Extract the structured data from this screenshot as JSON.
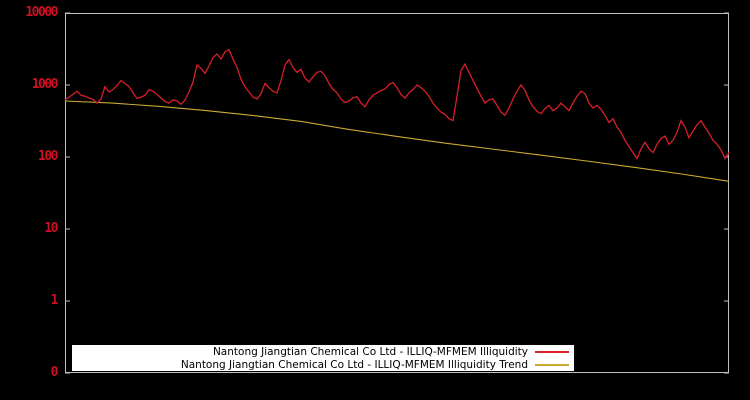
{
  "chart": {
    "background_color": "#000000",
    "frame_color": "#c0c0c0",
    "y_axis": {
      "scale": "log",
      "tick_labels": [
        "10000",
        "1000",
        "100",
        "10",
        "1",
        "0"
      ],
      "tick_values": [
        10000,
        1000,
        100,
        10,
        1,
        0.1
      ],
      "label_color": "#cc1122"
    },
    "x_axis": {
      "tick_labels": []
    },
    "legend": {
      "background": "#ffffff",
      "text_color": "#000000",
      "position": "bottom-center",
      "entries": [
        {
          "label": "Nantong Jiangtian Chemical Co Ltd - ILLIQ-MFMEM Illiquidity",
          "color": "#d81e28"
        },
        {
          "label": "Nantong Jiangtian Chemical Co Ltd - ILLIQ-MFMEM Illiquidity Trend",
          "color": "#ccaa33"
        }
      ]
    }
  },
  "chart_data": {
    "type": "line",
    "title": "",
    "xlabel": "",
    "ylabel": "",
    "y_scale": "log",
    "ylim": [
      0.1,
      10000
    ],
    "grid": false,
    "legend_position": "bottom-center",
    "series": [
      {
        "name": "Nantong Jiangtian Chemical Co Ltd - ILLIQ-MFMEM Illiquidity",
        "color": "#d81e28",
        "values": [
          620,
          680,
          740,
          820,
          720,
          700,
          660,
          630,
          560,
          640,
          950,
          800,
          870,
          980,
          1150,
          1050,
          950,
          780,
          650,
          680,
          720,
          860,
          820,
          740,
          660,
          590,
          560,
          620,
          600,
          540,
          620,
          800,
          1100,
          1900,
          1700,
          1450,
          1850,
          2400,
          2700,
          2300,
          2900,
          3100,
          2300,
          1750,
          1200,
          950,
          800,
          680,
          640,
          760,
          1050,
          920,
          820,
          780,
          1150,
          1900,
          2250,
          1750,
          1500,
          1650,
          1250,
          1100,
          1300,
          1500,
          1550,
          1350,
          1050,
          870,
          780,
          640,
          570,
          600,
          660,
          690,
          560,
          500,
          620,
          720,
          780,
          840,
          880,
          1020,
          1080,
          920,
          740,
          660,
          780,
          860,
          1000,
          920,
          820,
          700,
          560,
          480,
          420,
          390,
          340,
          320,
          700,
          1600,
          1950,
          1500,
          1150,
          900,
          700,
          560,
          620,
          640,
          520,
          420,
          380,
          480,
          640,
          820,
          1000,
          840,
          620,
          500,
          430,
          400,
          470,
          520,
          440,
          480,
          560,
          500,
          440,
          560,
          700,
          820,
          760,
          560,
          480,
          520,
          460,
          380,
          300,
          340,
          260,
          220,
          170,
          140,
          115,
          95,
          130,
          160,
          130,
          115,
          150,
          180,
          195,
          150,
          170,
          220,
          320,
          260,
          185,
          230,
          280,
          320,
          260,
          215,
          170,
          150,
          125,
          95,
          115
        ]
      },
      {
        "name": "Nantong Jiangtian Chemical Co Ltd - ILLIQ-MFMEM Illiquidity Trend",
        "color": "#ccaa33",
        "values": [
          600,
          560,
          505,
          440,
          375,
          310,
          240,
          193,
          156,
          129,
          107,
          88,
          72,
          58,
          46
        ]
      }
    ]
  }
}
